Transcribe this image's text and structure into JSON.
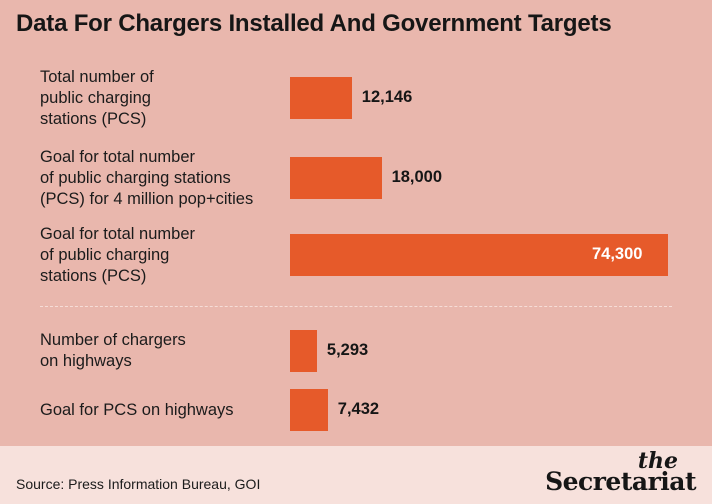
{
  "title": "Data For Chargers Installed And Government Targets",
  "source": "Source: Press Information Bureau, GOI",
  "logo": {
    "top": "the",
    "main": "Secretariat"
  },
  "colors": {
    "background": "#e9b7ad",
    "bar": "#e65a2a",
    "footer": "#f7e1dc",
    "text": "#161616"
  },
  "chart_data": {
    "type": "bar",
    "orientation": "horizontal",
    "categories": [
      "Total number of\npublic charging\nstations (PCS)",
      "Goal for total number\nof public charging stations\n(PCS) for 4 million pop+cities",
      "Goal for total number\nof public charging\nstations (PCS)",
      "Number of chargers\non highways",
      "Goal for PCS on highways"
    ],
    "values": [
      12146,
      18000,
      74300,
      5293,
      7432
    ],
    "value_labels": [
      "12,146",
      "18,000",
      "74,300",
      "5,293",
      "7,432"
    ],
    "title": "Data For Chargers Installed And Government Targets",
    "xlabel": "",
    "ylabel": "",
    "xlim": [
      0,
      74300
    ],
    "grid": false,
    "legend": "none"
  }
}
